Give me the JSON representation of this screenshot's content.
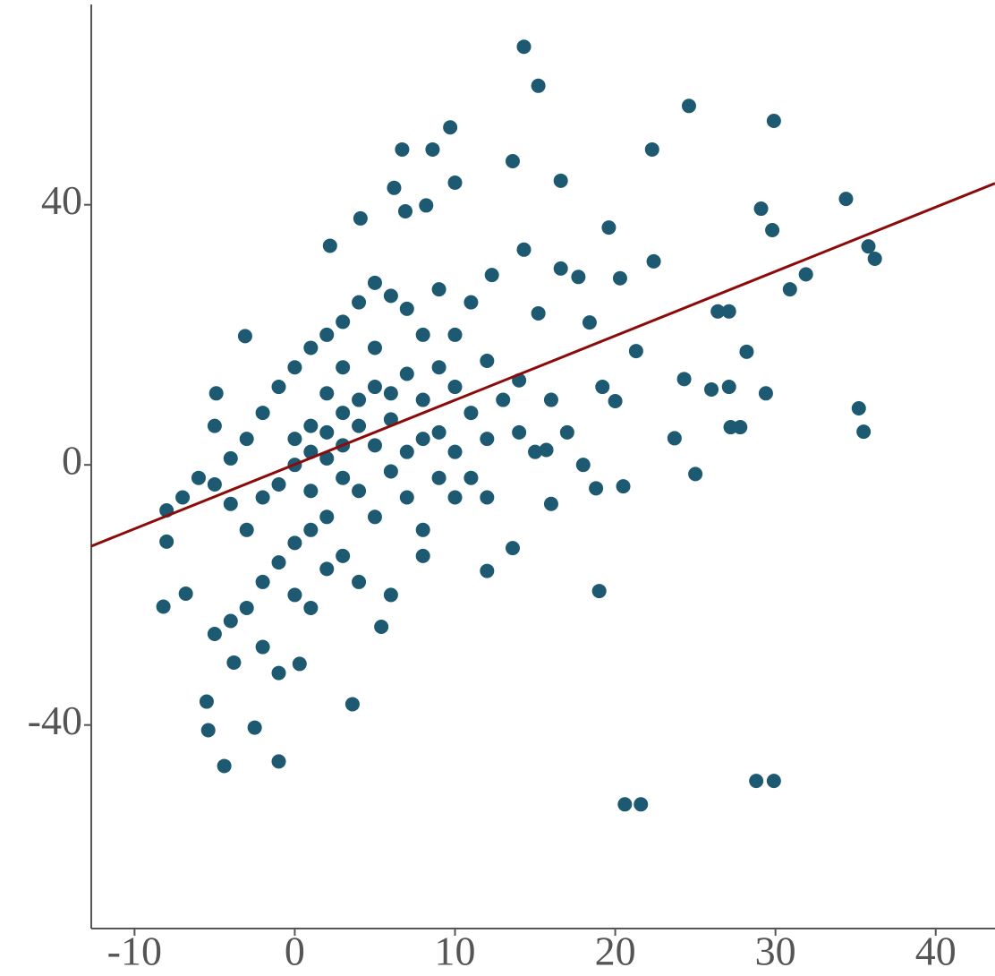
{
  "chart_data": {
    "type": "scatter",
    "x": [
      14.3,
      15.2,
      24.6,
      29.9,
      9.7,
      22.3,
      16.6,
      34.4,
      29.1,
      29.8,
      22.4,
      20.3,
      31.9,
      30.9,
      35.8,
      36.2,
      26.4,
      27.1,
      28.2,
      21.3,
      24.3,
      26.0,
      27.1,
      29.4,
      35.2,
      35.5,
      27.2,
      27.8,
      23.7,
      25.0,
      20.5,
      19.0,
      3.6,
      28.8,
      29.9,
      20.6,
      21.6,
      -4.4,
      -1.0,
      -5.4,
      -2.5,
      -5.5,
      -8.2,
      -6.8,
      -8.0,
      0.3,
      -3.8,
      5.4,
      12.0,
      13.6,
      -4.9,
      -3.1,
      2.2,
      4.1,
      6.7,
      8.6,
      13.6,
      10.0,
      6.2,
      6.9,
      8.2,
      14.3,
      16.6,
      19.6,
      17.7,
      12.3,
      15.2,
      18.4,
      19.2,
      20.0,
      15.7,
      18.8,
      0,
      1,
      2,
      3,
      -1,
      -2,
      4,
      5,
      6,
      7,
      8,
      9,
      10,
      11,
      12,
      3,
      2,
      1,
      0,
      -1,
      -2,
      -3,
      -4,
      -5,
      -6,
      -3,
      -2,
      -1,
      0,
      1,
      2,
      3,
      4,
      5,
      6,
      7,
      8,
      9,
      10,
      11,
      12,
      8,
      7,
      6,
      5,
      4,
      3,
      2,
      4,
      6,
      1,
      2,
      3,
      5,
      7,
      9,
      13,
      14,
      10,
      -3,
      -4,
      -5,
      -7,
      -8,
      -5,
      -4,
      0,
      1,
      -2,
      5,
      11,
      9,
      12,
      15,
      14,
      16,
      17,
      18,
      16,
      8,
      -1,
      0,
      1,
      2,
      3,
      4,
      6,
      8,
      10
    ],
    "values": [
      64.3,
      58.3,
      55.2,
      52.9,
      51.9,
      48.5,
      43.7,
      40.9,
      39.4,
      36.1,
      31.3,
      28.7,
      29.3,
      27.0,
      33.6,
      31.7,
      23.6,
      23.6,
      17.4,
      17.5,
      13.2,
      11.6,
      12.0,
      11.0,
      8.7,
      5.1,
      5.8,
      5.8,
      4.1,
      -1.4,
      -3.3,
      -19.4,
      -36.8,
      -48.6,
      -48.6,
      -52.2,
      -52.2,
      -46.3,
      -45.6,
      -40.8,
      -40.4,
      -36.4,
      -21.8,
      -19.8,
      -11.8,
      -30.6,
      -30.4,
      -24.9,
      -16.3,
      -12.8,
      11.0,
      19.8,
      33.7,
      37.9,
      48.5,
      48.5,
      46.7,
      43.4,
      42.6,
      39.0,
      39.9,
      33.1,
      30.2,
      36.5,
      28.9,
      29.2,
      23.3,
      21.9,
      12.0,
      9.8,
      2.3,
      -3.6,
      0,
      2,
      5,
      8,
      -3,
      -5,
      10,
      12,
      7,
      14,
      10,
      15,
      12,
      8,
      16,
      -2,
      -8,
      -10,
      -12,
      -15,
      -18,
      -10,
      -6,
      -3,
      -2,
      4,
      8,
      12,
      15,
      18,
      20,
      22,
      25,
      28,
      26,
      24,
      20,
      5,
      2,
      -2,
      -5,
      -10,
      -5,
      -1,
      3,
      -4,
      -14,
      -16,
      -18,
      -20,
      6,
      11,
      15,
      18,
      2,
      -2,
      10,
      13,
      20,
      -22,
      -24,
      -26,
      -5,
      -7,
      6,
      1,
      -20,
      -22,
      -28,
      -8,
      25,
      27,
      4,
      2,
      5,
      10,
      5,
      0,
      -6,
      -14,
      -32,
      4,
      -4,
      1,
      3,
      6,
      11,
      4,
      -5
    ],
    "color": "#1d5a72",
    "fit_line": {
      "x": [
        -12.7,
        43.7
      ],
      "values": [
        -12.5,
        43.3
      ],
      "color": "#8b0a0a"
    },
    "xlim": [
      -12.7,
      43.7
    ],
    "ylim": [
      -71.3,
      70.8
    ],
    "xticks": [
      -10,
      0,
      10,
      20,
      30,
      40
    ],
    "yticks": [
      -40,
      0,
      40
    ]
  }
}
